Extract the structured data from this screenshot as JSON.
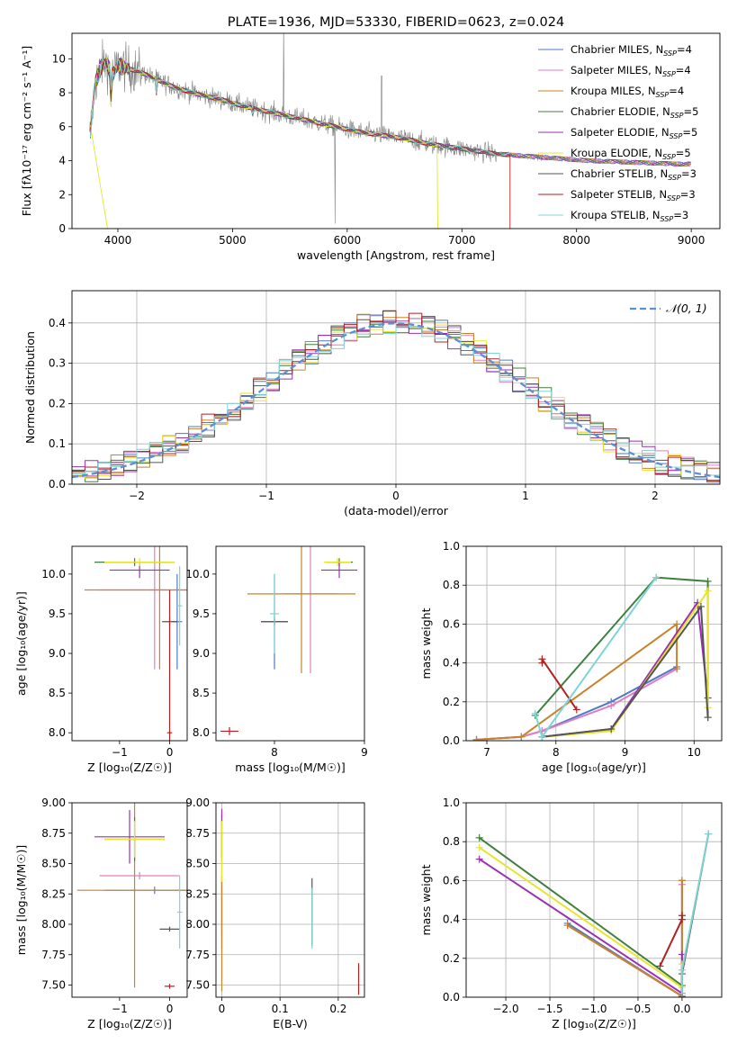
{
  "colors": {
    "Chabrier MILES": "#4e7ac7",
    "Salpeter MILES": "#e07ec3",
    "Kroupa MILES": "#c8832a",
    "Chabrier ELODIE": "#3f7f3f",
    "Salpeter ELODIE": "#9b30b5",
    "Kroupa ELODIE": "#e5e52e",
    "Chabrier STELIB": "#555555",
    "Salpeter STELIB": "#b22222",
    "Kroupa STELIB": "#7fd4d4",
    "normal": "#5b8fd6",
    "observed": "#808080"
  },
  "chart_data": [
    {
      "type": "line",
      "title": "PLATE=1936, MJD=53330, FIBERID=0623, z=0.024",
      "xlabel": "wavelength [Angstrom, rest frame]",
      "ylabel": "Flux [fλ10⁻¹⁷ erg cm⁻² s⁻¹ A⁻¹]",
      "xlim": [
        3600,
        9250
      ],
      "ylim": [
        0,
        11.5
      ],
      "xticks": [
        4000,
        5000,
        6000,
        7000,
        8000,
        9000
      ],
      "yticks": [
        0,
        2,
        4,
        6,
        8,
        10
      ],
      "legend_position": "top-right",
      "observed_x": [
        3750,
        3800,
        3850,
        3900,
        3950,
        4000,
        4100,
        4200,
        4300,
        4400,
        4500,
        4700,
        4900,
        5100,
        5300,
        5500,
        5700,
        5900,
        6100,
        6300,
        6500,
        6700,
        6900,
        7100,
        7300,
        7500,
        7700,
        7900,
        8100,
        8300,
        8500,
        8700,
        8900,
        9000
      ],
      "observed_y": [
        5.0,
        8.5,
        9.5,
        9.8,
        9.0,
        9.6,
        9.4,
        9.2,
        8.9,
        8.6,
        8.3,
        7.9,
        7.6,
        7.2,
        6.9,
        6.6,
        6.3,
        6.0,
        5.7,
        5.5,
        5.3,
        5.0,
        4.8,
        4.6,
        4.4,
        4.3,
        4.2,
        4.1,
        4.0,
        3.95,
        3.9,
        3.85,
        3.8,
        3.8
      ],
      "series": [
        {
          "name": "Chabrier MILES, N_SSP=4",
          "model": "Chabrier MILES"
        },
        {
          "name": "Salpeter MILES, N_SSP=4",
          "model": "Salpeter MILES"
        },
        {
          "name": "Kroupa MILES, N_SSP=4",
          "model": "Kroupa MILES"
        },
        {
          "name": "Chabrier ELODIE, N_SSP=5",
          "model": "Chabrier ELODIE"
        },
        {
          "name": "Salpeter ELODIE, N_SSP=5",
          "model": "Salpeter ELODIE"
        },
        {
          "name": "Kroupa ELODIE, N_SSP=5",
          "model": "Kroupa ELODIE"
        },
        {
          "name": "Chabrier STELIB, N_SSP=3",
          "model": "Chabrier STELIB"
        },
        {
          "name": "Salpeter STELIB, N_SSP=3",
          "model": "Salpeter STELIB"
        },
        {
          "name": "Kroupa STELIB, N_SSP=3",
          "model": "Kroupa STELIB"
        }
      ]
    },
    {
      "type": "line",
      "xlabel": "(data-model)/error",
      "ylabel": "Normed distribution",
      "xlim": [
        -2.5,
        2.5
      ],
      "ylim": [
        0,
        0.48
      ],
      "xticks": [
        -2,
        -1,
        0,
        1,
        2
      ],
      "yticks": [
        0.0,
        0.1,
        0.2,
        0.3,
        0.4
      ],
      "grid": true,
      "legend_position": "top-right",
      "legend": "𝒩(0, 1)",
      "bin_width": 0.1
    },
    {
      "type": "scatter",
      "xlabel": "Z [log₁₀(Z/Z☉)]",
      "ylabel": "age  [log₁₀(age/yr)]",
      "xlim": [
        -1.95,
        0.35
      ],
      "ylim": [
        7.9,
        10.35
      ],
      "xticks": [
        -1,
        0
      ],
      "yticks": [
        8.0,
        8.5,
        9.0,
        9.5,
        10.0
      ],
      "points": [
        {
          "model": "Chabrier MILES",
          "x": 0.15,
          "y": 9.4,
          "xerr": 0.1,
          "yerr": 0.6
        },
        {
          "model": "Salpeter MILES",
          "x": -0.3,
          "y": 9.8,
          "xerr": 1.1,
          "yerr": 1.0
        },
        {
          "model": "Kroupa MILES",
          "x": -0.2,
          "y": 9.8,
          "xerr": 1.5,
          "yerr": 1.0
        },
        {
          "model": "Chabrier ELODIE",
          "x": -0.7,
          "y": 10.15,
          "xerr": 0.8,
          "yerr": 0.05
        },
        {
          "model": "Salpeter ELODIE",
          "x": -0.6,
          "y": 10.05,
          "xerr": 0.6,
          "yerr": 0.1
        },
        {
          "model": "Kroupa ELODIE",
          "x": -0.6,
          "y": 10.15,
          "xerr": 0.7,
          "yerr": 0.05
        },
        {
          "model": "Chabrier STELIB",
          "x": 0.0,
          "y": 9.4,
          "xerr": 0.15,
          "yerr": 0.05
        },
        {
          "model": "Salpeter STELIB",
          "x": 0.0,
          "y": 8.0,
          "xerr": 0.05,
          "yerr": 1.8
        },
        {
          "model": "Kroupa STELIB",
          "x": 0.2,
          "y": 9.6,
          "xerr": 0.05,
          "yerr": 0.5
        }
      ]
    },
    {
      "type": "scatter",
      "xlabel": "mass [log₁₀(M/M☉)]",
      "xlim": [
        7.35,
        9.0
      ],
      "ylim": [
        7.9,
        10.35
      ],
      "xticks": [
        8,
        9
      ],
      "yticks": [
        8.0,
        8.5,
        9.0,
        9.5,
        10.0
      ],
      "points": [
        {
          "model": "Chabrier MILES",
          "x": 8.0,
          "y": 9.4,
          "xerr": 0.15,
          "yerr": 0.6
        },
        {
          "model": "Salpeter MILES",
          "x": 8.4,
          "y": 9.75,
          "xerr": 0.3,
          "yerr": 1.0
        },
        {
          "model": "Kroupa MILES",
          "x": 8.3,
          "y": 9.75,
          "xerr": 0.6,
          "yerr": 1.0
        },
        {
          "model": "Chabrier ELODIE",
          "x": 8.72,
          "y": 10.15,
          "xerr": 0.15,
          "yerr": 0.05
        },
        {
          "model": "Salpeter ELODIE",
          "x": 8.72,
          "y": 10.05,
          "xerr": 0.2,
          "yerr": 0.1
        },
        {
          "model": "Kroupa ELODIE",
          "x": 8.7,
          "y": 10.15,
          "xerr": 0.15,
          "yerr": 0.05
        },
        {
          "model": "Chabrier STELIB",
          "x": 8.0,
          "y": 9.4,
          "xerr": 0.15,
          "yerr": 0.05
        },
        {
          "model": "Salpeter STELIB",
          "x": 7.5,
          "y": 8.02,
          "xerr": 0.1,
          "yerr": 0.05
        },
        {
          "model": "Kroupa STELIB",
          "x": 8.0,
          "y": 9.5,
          "xerr": 0.05,
          "yerr": 0.5
        }
      ]
    },
    {
      "type": "line",
      "xlabel": "age  [log₁₀(age/yr)]",
      "ylabel": "mass weight",
      "xlim": [
        6.7,
        10.4
      ],
      "ylim": [
        0,
        1.0
      ],
      "xticks": [
        7,
        8,
        9,
        10
      ],
      "yticks": [
        0.0,
        0.2,
        0.4,
        0.6,
        0.8,
        1.0
      ],
      "grid": true,
      "series": [
        {
          "model": "Chabrier MILES",
          "x": [
            6.85,
            7.5,
            7.8,
            8.8,
            9.75
          ],
          "y": [
            0.005,
            0.02,
            0.05,
            0.2,
            0.38
          ]
        },
        {
          "model": "Salpeter MILES",
          "x": [
            6.85,
            7.5,
            7.8,
            8.8,
            9.75
          ],
          "y": [
            0.005,
            0.02,
            0.05,
            0.18,
            0.37
          ]
        },
        {
          "model": "Kroupa MILES",
          "x": [
            6.85,
            7.5,
            9.75,
            9.75
          ],
          "y": [
            0.005,
            0.02,
            0.6,
            0.37
          ]
        },
        {
          "model": "Chabrier ELODIE",
          "x": [
            7.7,
            9.45,
            10.2,
            10.2
          ],
          "y": [
            0.13,
            0.84,
            0.82,
            0.12
          ]
        },
        {
          "model": "Salpeter ELODIE",
          "x": [
            7.8,
            8.8,
            10.05,
            10.2
          ],
          "y": [
            0.02,
            0.06,
            0.71,
            0.22
          ]
        },
        {
          "model": "Kroupa ELODIE",
          "x": [
            7.8,
            8.8,
            10.2,
            10.2
          ],
          "y": [
            0.02,
            0.05,
            0.77,
            0.17
          ]
        },
        {
          "model": "Chabrier STELIB",
          "x": [
            7.8,
            8.8,
            10.1,
            10.2
          ],
          "y": [
            0.02,
            0.06,
            0.69,
            0.12
          ]
        },
        {
          "model": "Salpeter STELIB",
          "x": [
            7.8,
            7.8,
            8.3
          ],
          "y": [
            0.4,
            0.42,
            0.16
          ]
        },
        {
          "model": "Kroupa STELIB",
          "x": [
            7.7,
            7.8,
            9.45
          ],
          "y": [
            0.14,
            0.02,
            0.84
          ]
        }
      ]
    },
    {
      "type": "scatter",
      "xlabel": "Z [log₁₀(Z/Z☉)]",
      "ylabel": "mass [log₁₀(M/M☉)]",
      "xlim": [
        -1.95,
        0.35
      ],
      "ylim": [
        7.4,
        9.0
      ],
      "xticks": [
        -1,
        0
      ],
      "yticks": [
        7.5,
        7.75,
        8.0,
        8.25,
        8.5,
        8.75,
        9.0
      ],
      "points": [
        {
          "model": "Chabrier MILES",
          "x": -0.3,
          "y": 8.28,
          "xerr": 1.0,
          "yerr": 0.03
        },
        {
          "model": "Salpeter MILES",
          "x": -0.6,
          "y": 8.4,
          "xerr": 0.8,
          "yerr": 0.03
        },
        {
          "model": "Kroupa MILES",
          "x": -0.7,
          "y": 8.28,
          "xerr": 1.15,
          "yerr": 0.8
        },
        {
          "model": "Chabrier ELODIE",
          "x": -0.7,
          "y": 8.7,
          "xerr": 0.6,
          "yerr": 0.18
        },
        {
          "model": "Salpeter ELODIE",
          "x": -0.8,
          "y": 8.72,
          "xerr": 0.7,
          "yerr": 0.22
        },
        {
          "model": "Kroupa ELODIE",
          "x": -0.7,
          "y": 8.7,
          "xerr": 0.6,
          "yerr": 0.15
        },
        {
          "model": "Chabrier STELIB",
          "x": 0.0,
          "y": 7.96,
          "xerr": 0.2,
          "yerr": 0.02
        },
        {
          "model": "Salpeter STELIB",
          "x": 0.0,
          "y": 7.49,
          "xerr": 0.1,
          "yerr": 0.02
        },
        {
          "model": "Kroupa STELIB",
          "x": 0.2,
          "y": 8.1,
          "xerr": 0.05,
          "yerr": 0.3
        }
      ]
    },
    {
      "type": "scatter",
      "xlabel": "E(B-V)",
      "xlim": [
        -0.01,
        0.245
      ],
      "ylim": [
        7.4,
        9.0
      ],
      "xticks": [
        0.0,
        0.1,
        0.2
      ],
      "yticks": [
        7.5,
        7.75,
        8.0,
        8.25,
        8.5,
        8.75,
        9.0
      ],
      "grid": true,
      "points": [
        {
          "model": "Chabrier MILES",
          "x": 0.0,
          "y": 8.1,
          "xerr": 0.0,
          "yerr": 0.3
        },
        {
          "model": "Salpeter MILES",
          "x": 0.0,
          "y": 8.2,
          "xerr": 0.0,
          "yerr": 0.3
        },
        {
          "model": "Kroupa MILES",
          "x": 0.0,
          "y": 7.9,
          "xerr": 0.0,
          "yerr": 0.45
        },
        {
          "model": "Chabrier ELODIE",
          "x": 0.0,
          "y": 8.7,
          "xerr": 0.0,
          "yerr": 0.2
        },
        {
          "model": "Salpeter ELODIE",
          "x": 0.0,
          "y": 8.75,
          "xerr": 0.0,
          "yerr": 0.2
        },
        {
          "model": "Kroupa ELODIE",
          "x": 0.0,
          "y": 8.6,
          "xerr": 0.0,
          "yerr": 0.25
        },
        {
          "model": "Chabrier STELIB",
          "x": 0.155,
          "y": 8.1,
          "xerr": 0.0,
          "yerr": 0.28
        },
        {
          "model": "Salpeter STELIB",
          "x": 0.235,
          "y": 7.55,
          "xerr": 0.0,
          "yerr": 0.13
        },
        {
          "model": "Kroupa STELIB",
          "x": 0.155,
          "y": 8.05,
          "xerr": 0.0,
          "yerr": 0.25
        }
      ]
    },
    {
      "type": "line",
      "xlabel": "Z [log₁₀(Z/Z☉)]",
      "ylabel": "mass weight",
      "xlim": [
        -2.45,
        0.45
      ],
      "ylim": [
        0,
        1.0
      ],
      "xticks": [
        -2.0,
        -1.5,
        -1.0,
        -0.5,
        0.0
      ],
      "yticks": [
        0.0,
        0.2,
        0.4,
        0.6,
        0.8,
        1.0
      ],
      "grid": true,
      "series": [
        {
          "model": "Chabrier MILES",
          "x": [
            -1.3,
            0.0,
            0.0
          ],
          "y": [
            0.38,
            0.005,
            0.6
          ]
        },
        {
          "model": "Salpeter MILES",
          "x": [
            -1.3,
            0.0,
            0.0
          ],
          "y": [
            0.37,
            0.005,
            0.58
          ]
        },
        {
          "model": "Kroupa MILES",
          "x": [
            -1.3,
            0.0,
            0.0
          ],
          "y": [
            0.37,
            0.005,
            0.6
          ]
        },
        {
          "model": "Chabrier ELODIE",
          "x": [
            -2.3,
            0.0,
            0.0
          ],
          "y": [
            0.82,
            0.06,
            0.0
          ]
        },
        {
          "model": "Salpeter ELODIE",
          "x": [
            -2.3,
            0.0,
            0.0
          ],
          "y": [
            0.71,
            0.02,
            0.22
          ]
        },
        {
          "model": "Kroupa ELODIE",
          "x": [
            -2.3,
            0.0,
            0.0
          ],
          "y": [
            0.77,
            0.05,
            0.17
          ]
        },
        {
          "model": "Chabrier STELIB",
          "x": [
            0.0,
            0.0,
            0.3
          ],
          "y": [
            0.0,
            0.12,
            0.84
          ]
        },
        {
          "model": "Salpeter STELIB",
          "x": [
            -0.25,
            0.0,
            0.0
          ],
          "y": [
            0.16,
            0.4,
            0.42
          ]
        },
        {
          "model": "Kroupa STELIB",
          "x": [
            0.0,
            0.0,
            0.3
          ],
          "y": [
            0.02,
            0.14,
            0.84
          ]
        }
      ]
    }
  ]
}
